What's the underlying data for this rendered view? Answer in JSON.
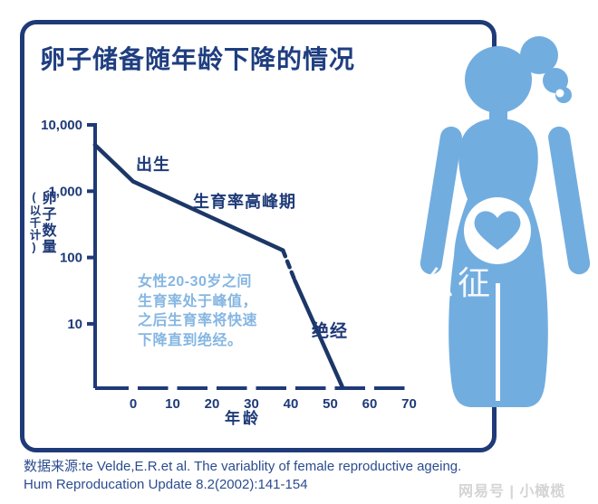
{
  "title": "卵子储备随年龄下降的情况",
  "chart_data": {
    "type": "line",
    "title": "卵子储备随年龄下降的情况",
    "x_axis": {
      "label": "年龄",
      "ticks": [
        0,
        10,
        20,
        30,
        40,
        50,
        60,
        70
      ],
      "range": [
        -10,
        72
      ]
    },
    "y_axis": {
      "label_main": "卵子数量",
      "label_sub": "(以千计)",
      "scale": "log",
      "ticks": [
        "10,000",
        "1,000",
        "100",
        "10"
      ],
      "tick_values": [
        10000,
        1000,
        100,
        10
      ],
      "range": [
        1,
        10000
      ]
    },
    "grid": "off",
    "legend": "none",
    "series": [
      {
        "name": "卵子数量(以千计)",
        "points": [
          {
            "age": -9.7,
            "value": 5000
          },
          {
            "age": 0,
            "value": 1400
          },
          {
            "age": 38,
            "value": 128
          },
          {
            "age": 41,
            "value": 45
          },
          {
            "age": 53,
            "value": 1.15
          }
        ],
        "dashed_segment_index": 2
      }
    ],
    "annotations": {
      "birth": "出生",
      "peak": "生育率高峰期",
      "menopause": "绝经",
      "note": "女性20-30岁之间\n生育率处于峰值，\n之后生育率将快速\n下降直到绝经。"
    }
  },
  "source": {
    "line1": "数据来源:te Velde,E.R.et al. The variablity of female reproductive ageing.",
    "line2": "Hum Reproducation Update 8.2(2002):141-154"
  },
  "watermarks": {
    "figure_overlay": "么征",
    "bottom_right": "网易号 | 小橄榄"
  },
  "icons": {
    "pregnant_woman": "pregnant-woman-icon",
    "heart": "heart-icon"
  },
  "colors": {
    "navy": "#1e3a78",
    "title": "#1f3e80",
    "curve": "#1c3767",
    "figure_blue": "#72ade0",
    "note_blue": "#85b6e2",
    "source_text": "#2b4c8f",
    "watermark_gray": "#d4d4d4",
    "background": "#ffffff"
  }
}
